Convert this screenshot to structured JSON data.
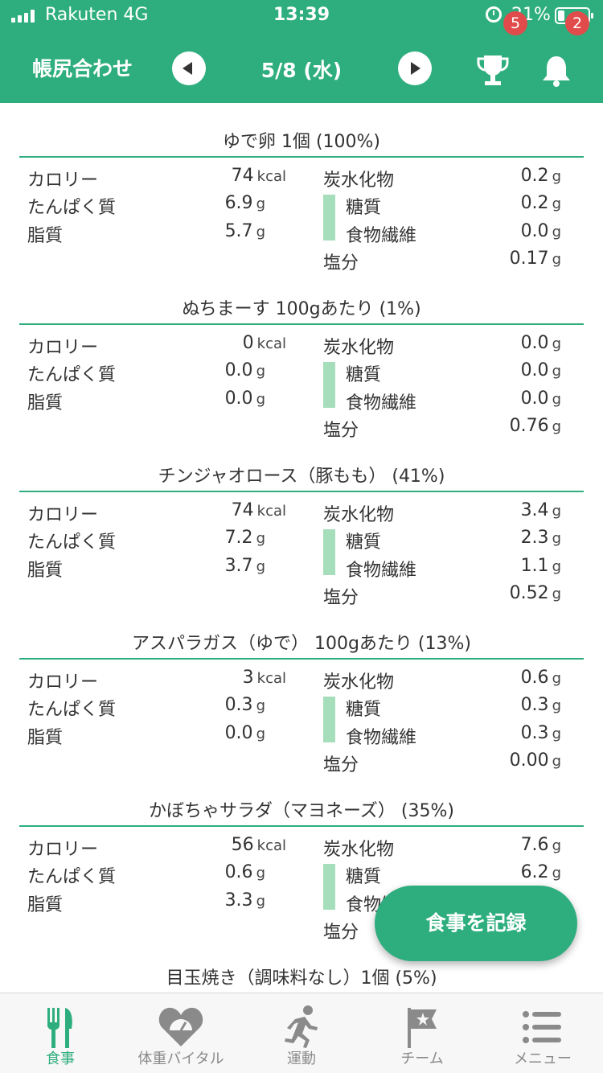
{
  "status_bar": {
    "carrier": "Rakuten   4G",
    "time": "13:39",
    "battery": "21%"
  },
  "header": {
    "title": "帳尻合わせ",
    "date": "5/8 (水)",
    "trophy_badge": "5",
    "bell_badge": "2"
  },
  "labels": {
    "calorie": "カロリー",
    "protein": "たんぱく質",
    "fat": "脂質",
    "carbs": "炭水化物",
    "sugar": "糖質",
    "fiber": "食物繊維",
    "salt": "塩分",
    "kcal": "kcal",
    "g": "g"
  },
  "foods": [
    {
      "name": "ゆで卵 1個  (100%)",
      "calorie": "74",
      "protein": "6.9",
      "fat": "5.7",
      "carbs": "0.2",
      "sugar": "0.2",
      "fiber": "0.0",
      "salt": "0.17"
    },
    {
      "name": "ぬちまーす 100gあたり  (1%)",
      "calorie": "0",
      "protein": "0.0",
      "fat": "0.0",
      "carbs": "0.0",
      "sugar": "0.0",
      "fiber": "0.0",
      "salt": "0.76"
    },
    {
      "name": "チンジャオロース（豚もも）  (41%)",
      "calorie": "74",
      "protein": "7.2",
      "fat": "3.7",
      "carbs": "3.4",
      "sugar": "2.3",
      "fiber": "1.1",
      "salt": "0.52"
    },
    {
      "name": "アスパラガス（ゆで） 100gあたり  (13%)",
      "calorie": "3",
      "protein": "0.3",
      "fat": "0.0",
      "carbs": "0.6",
      "sugar": "0.3",
      "fiber": "0.3",
      "salt": "0.00"
    },
    {
      "name": "かぼちゃサラダ（マヨネーズ）  (35%)",
      "calorie": "56",
      "protein": "0.6",
      "fat": "3.3",
      "carbs": "7.6",
      "sugar": "6.2",
      "fiber": "",
      "salt": ""
    },
    {
      "name": "目玉焼き（調味料なし）1個  (5%)"
    }
  ],
  "record_button": "食事を記録",
  "tabs": [
    {
      "label": "食事",
      "icon": "fork-knife-icon",
      "active": true
    },
    {
      "label": "体重バイタル",
      "icon": "heart-scale-icon",
      "active": false
    },
    {
      "label": "運動",
      "icon": "runner-icon",
      "active": false
    },
    {
      "label": "チーム",
      "icon": "flag-icon",
      "active": false
    },
    {
      "label": "メニュー",
      "icon": "menu-list-icon",
      "active": false
    }
  ],
  "colors": {
    "accent": "#2eae7e",
    "sub_bar": "#a6ddbb",
    "badge": "#e24b4b"
  }
}
